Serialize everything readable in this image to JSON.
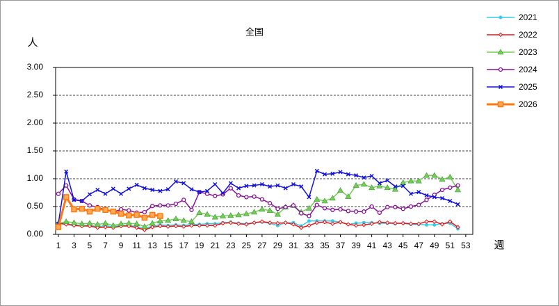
{
  "chart_data": {
    "type": "line",
    "title": "全国",
    "y_label": "人",
    "x_label": "週",
    "x": [
      1,
      2,
      3,
      4,
      5,
      6,
      7,
      8,
      9,
      10,
      11,
      12,
      13,
      14,
      15,
      16,
      17,
      18,
      19,
      20,
      21,
      22,
      23,
      24,
      25,
      26,
      27,
      28,
      29,
      30,
      31,
      32,
      33,
      34,
      35,
      36,
      37,
      38,
      39,
      40,
      41,
      42,
      43,
      44,
      45,
      46,
      47,
      48,
      49,
      50,
      51,
      52
    ],
    "xlim": [
      0.65,
      53.9
    ],
    "xticks": [
      1,
      3,
      5,
      7,
      9,
      11,
      13,
      15,
      17,
      19,
      21,
      23,
      25,
      27,
      29,
      31,
      33,
      35,
      37,
      39,
      41,
      43,
      45,
      47,
      49,
      51,
      53
    ],
    "ylim": [
      0,
      3
    ],
    "yticks": [
      {
        "value": 0,
        "label": "0.00"
      },
      {
        "value": 0.5,
        "label": "0.50"
      },
      {
        "value": 1,
        "label": "1.00"
      },
      {
        "value": 1.5,
        "label": "1.50"
      },
      {
        "value": 2,
        "label": "2.00"
      },
      {
        "value": 2.5,
        "label": "2.50"
      },
      {
        "value": 3,
        "label": "3.00"
      }
    ],
    "grid": true,
    "legend": "right",
    "series": [
      {
        "name": "2021",
        "color": "#33ccee",
        "marker": "dot",
        "values": [
          0.2,
          0.19,
          0.17,
          0.16,
          0.16,
          0.14,
          0.15,
          0.14,
          0.16,
          0.16,
          0.14,
          0.1,
          0.15,
          0.17,
          0.16,
          0.17,
          0.16,
          0.18,
          0.18,
          0.19,
          0.19,
          0.21,
          0.22,
          0.2,
          0.19,
          0.21,
          0.22,
          0.2,
          0.16,
          0.21,
          0.21,
          0.15,
          0.24,
          0.24,
          0.24,
          0.24,
          0.22,
          0.18,
          0.2,
          0.21,
          0.21,
          0.2,
          0.2,
          0.19,
          0.2,
          0.18,
          0.18,
          0.17,
          0.17,
          0.19,
          0.2,
          0.1
        ]
      },
      {
        "name": "2022",
        "color": "#ee1111",
        "marker": "diamond",
        "values": [
          0.2,
          0.18,
          0.16,
          0.15,
          0.15,
          0.12,
          0.13,
          0.12,
          0.15,
          0.15,
          0.12,
          0.08,
          0.13,
          0.15,
          0.14,
          0.15,
          0.14,
          0.16,
          0.16,
          0.16,
          0.16,
          0.2,
          0.21,
          0.19,
          0.18,
          0.21,
          0.23,
          0.21,
          0.2,
          0.21,
          0.18,
          0.12,
          0.16,
          0.21,
          0.22,
          0.19,
          0.22,
          0.18,
          0.16,
          0.17,
          0.19,
          0.22,
          0.21,
          0.2,
          0.2,
          0.19,
          0.19,
          0.23,
          0.23,
          0.18,
          0.23,
          0.13
        ]
      },
      {
        "name": "2023",
        "color": "#77cc55",
        "marker": "triangle",
        "values": [
          0.2,
          0.23,
          0.21,
          0.19,
          0.2,
          0.18,
          0.2,
          0.16,
          0.19,
          0.2,
          0.19,
          0.14,
          0.2,
          0.24,
          0.25,
          0.28,
          0.25,
          0.23,
          0.39,
          0.36,
          0.31,
          0.33,
          0.34,
          0.35,
          0.37,
          0.4,
          0.45,
          0.43,
          0.36,
          0.49,
          0.52,
          0.4,
          0.47,
          0.63,
          0.6,
          0.65,
          0.79,
          0.68,
          0.88,
          0.9,
          0.84,
          0.87,
          0.84,
          0.81,
          0.93,
          0.96,
          0.96,
          1.06,
          1.06,
          0.99,
          1.03,
          0.8
        ]
      },
      {
        "name": "2024",
        "color": "#881199",
        "marker": "circle",
        "values": [
          0.73,
          0.88,
          0.63,
          0.6,
          0.52,
          0.49,
          0.44,
          0.4,
          0.45,
          0.43,
          0.39,
          0.4,
          0.51,
          0.52,
          0.52,
          0.55,
          0.62,
          0.44,
          0.76,
          0.73,
          0.69,
          0.72,
          0.83,
          0.7,
          0.67,
          0.68,
          0.63,
          0.56,
          0.46,
          0.49,
          0.52,
          0.38,
          0.33,
          0.53,
          0.47,
          0.44,
          0.45,
          0.42,
          0.41,
          0.41,
          0.5,
          0.39,
          0.49,
          0.49,
          0.46,
          0.5,
          0.53,
          0.62,
          0.71,
          0.8,
          0.84,
          0.88
        ]
      },
      {
        "name": "2025",
        "color": "#1111dd",
        "marker": "cross",
        "values": [
          0.19,
          1.13,
          0.62,
          0.6,
          0.72,
          0.8,
          0.73,
          0.82,
          0.73,
          0.82,
          0.89,
          0.83,
          0.8,
          0.78,
          0.81,
          0.95,
          0.92,
          0.81,
          0.76,
          0.78,
          0.9,
          0.74,
          0.92,
          0.83,
          0.87,
          0.88,
          0.9,
          0.86,
          0.88,
          0.83,
          0.9,
          0.86,
          0.67,
          1.14,
          1.08,
          1.09,
          1.12,
          1.08,
          1.06,
          1.02,
          1.05,
          0.92,
          0.97,
          0.86,
          0.87,
          0.73,
          0.76,
          0.7,
          0.67,
          0.65,
          0.6,
          0.54
        ]
      },
      {
        "name": "2026",
        "color": "#ff7711",
        "marker": "square",
        "values": [
          0.13,
          0.67,
          0.45,
          0.46,
          0.41,
          0.46,
          0.44,
          0.41,
          0.37,
          0.34,
          0.35,
          0.3,
          0.35,
          0.33,
          null,
          null,
          null,
          null,
          null,
          null,
          null,
          null,
          null,
          null,
          null,
          null,
          null,
          null,
          null,
          null,
          null,
          null,
          null,
          null,
          null,
          null,
          null,
          null,
          null,
          null,
          null,
          null,
          null,
          null,
          null,
          null,
          null,
          null,
          null,
          null,
          null,
          null
        ]
      }
    ]
  }
}
